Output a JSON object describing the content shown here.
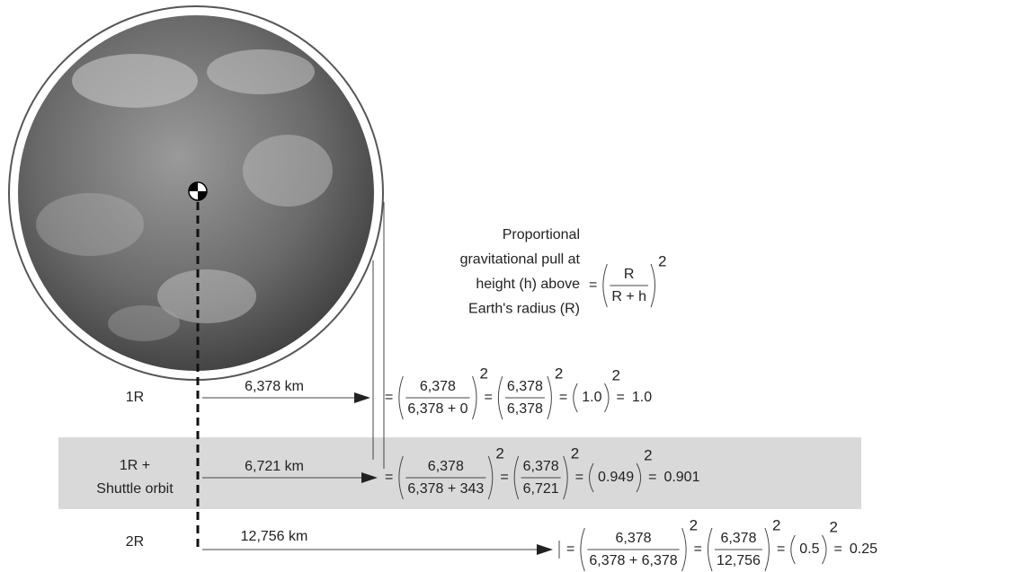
{
  "label": {
    "lines": [
      "Proportional",
      "gravitational pull at",
      "height (h) above",
      "Earth's radius (R)"
    ]
  },
  "formula": {
    "numerator": "R",
    "denominator": "R + h"
  },
  "symbols": {
    "equals": "=",
    "exponent": "2"
  },
  "rows": [
    {
      "label": [
        "1R"
      ],
      "distance": "6,378 km",
      "fraction": {
        "numerator": "6,378",
        "denominator": "6,378 + 0"
      },
      "simplified": {
        "numerator": "6,378",
        "denominator": "6,378"
      },
      "ratio": "1.0",
      "result": "1.0"
    },
    {
      "label": [
        "1R +",
        "Shuttle orbit"
      ],
      "distance": "6,721 km",
      "fraction": {
        "numerator": "6,378",
        "denominator": "6,378 + 343"
      },
      "simplified": {
        "numerator": "6,378",
        "denominator": "6,721"
      },
      "ratio": "0.949",
      "result": "0.901"
    },
    {
      "label": [
        "2R"
      ],
      "distance": "12,756 km",
      "fraction": {
        "numerator": "6,378",
        "denominator": "6,378 + 6,378"
      },
      "simplified": {
        "numerator": "6,378",
        "denominator": "12,756"
      },
      "ratio": "0.5",
      "result": "0.25"
    }
  ]
}
